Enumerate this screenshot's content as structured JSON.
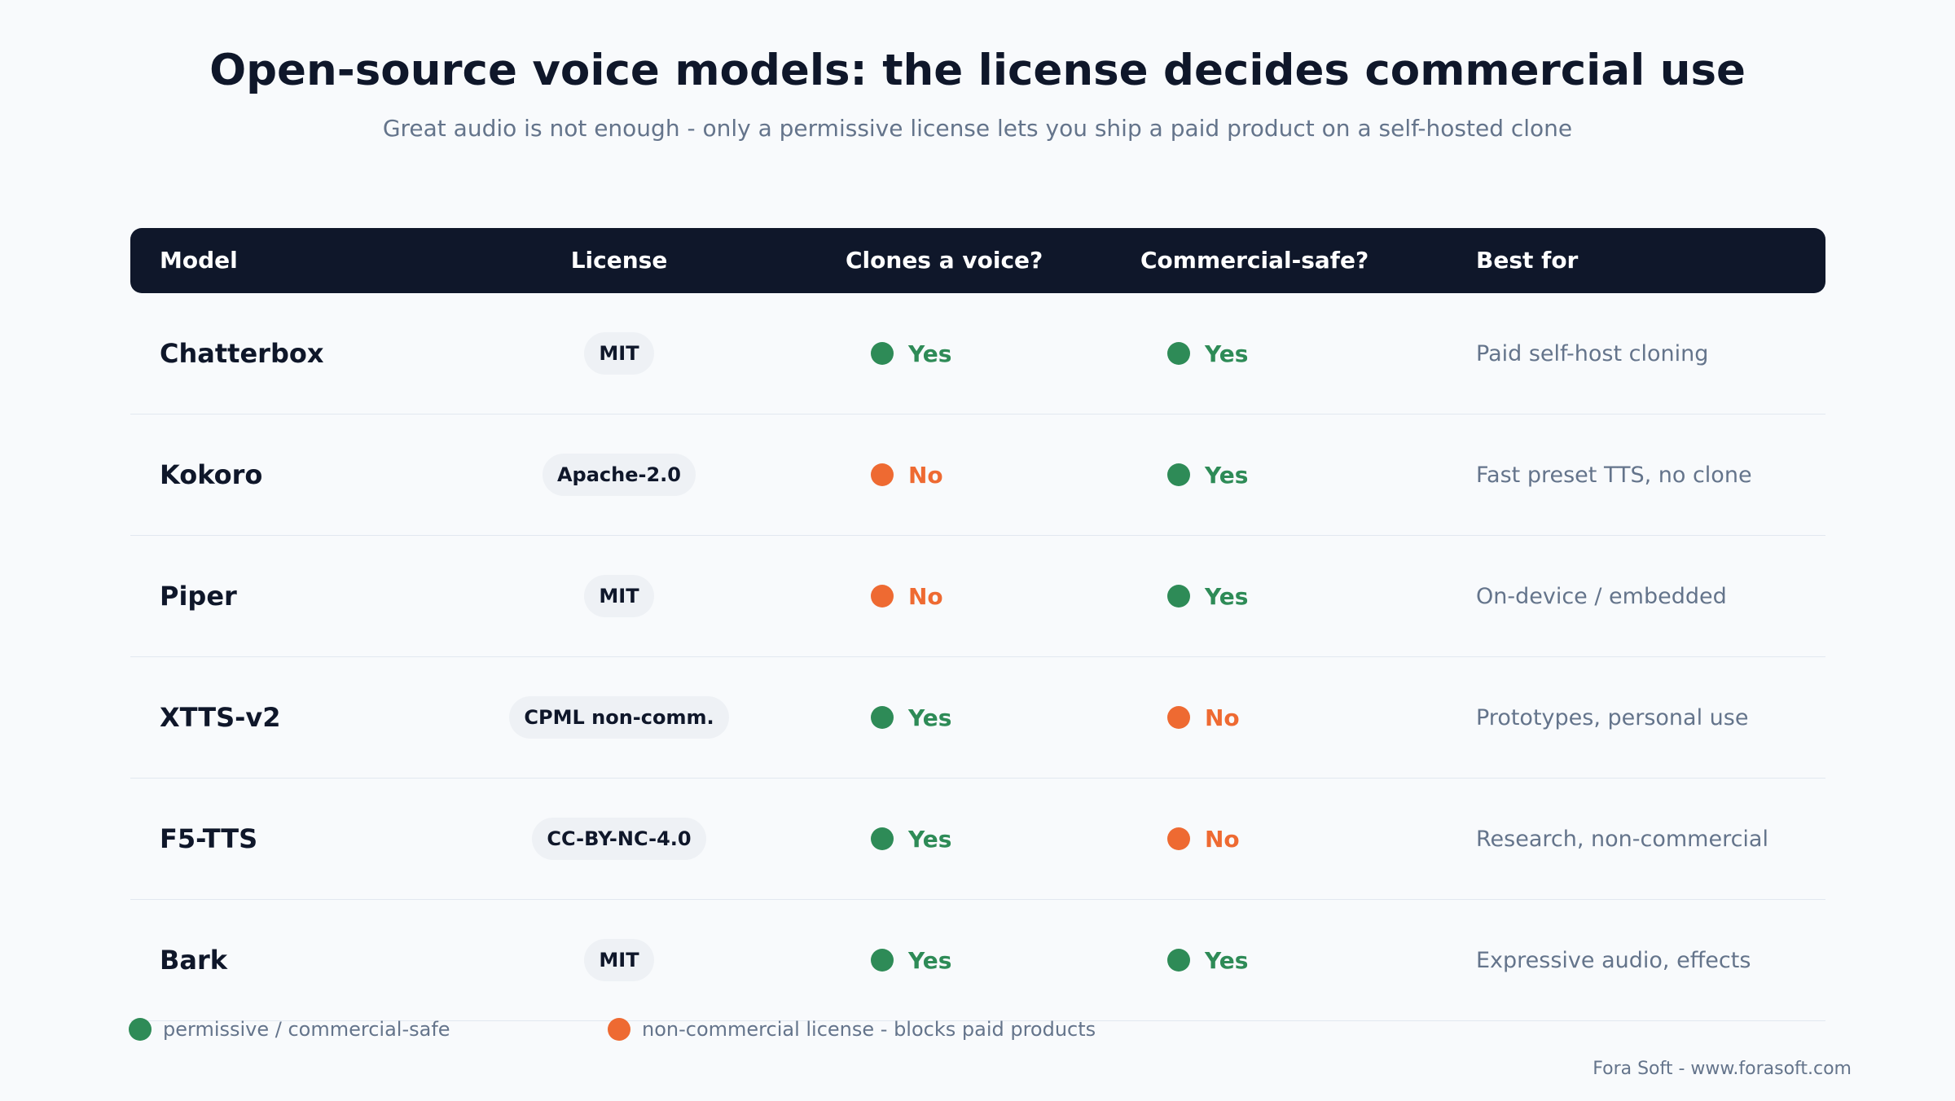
{
  "title": "Open-source voice models: the license decides commercial use",
  "subtitle": "Great audio is not enough - only a permissive license lets you ship a paid product on a self-hosted clone",
  "colors": {
    "yes": "#2e8b57",
    "no": "#ee6a32",
    "header_bg": "#0f172a"
  },
  "table": {
    "headers": {
      "model": "Model",
      "license": "License",
      "clones": "Clones a voice?",
      "commercial": "Commercial-safe?",
      "best_for": "Best for"
    },
    "rows": [
      {
        "model": "Chatterbox",
        "license": "MIT",
        "clones": "Yes",
        "commercial": "Yes",
        "best_for": "Paid self-host cloning"
      },
      {
        "model": "Kokoro",
        "license": "Apache-2.0",
        "clones": "No",
        "commercial": "Yes",
        "best_for": "Fast preset TTS, no clone"
      },
      {
        "model": "Piper",
        "license": "MIT",
        "clones": "No",
        "commercial": "Yes",
        "best_for": "On-device / embedded"
      },
      {
        "model": "XTTS-v2",
        "license": "CPML non-comm.",
        "clones": "Yes",
        "commercial": "No",
        "best_for": "Prototypes, personal use"
      },
      {
        "model": "F5-TTS",
        "license": "CC-BY-NC-4.0",
        "clones": "Yes",
        "commercial": "No",
        "best_for": "Research, non-commercial"
      },
      {
        "model": "Bark",
        "license": "MIT",
        "clones": "Yes",
        "commercial": "Yes",
        "best_for": "Expressive audio, effects"
      }
    ]
  },
  "legend": {
    "permissive": "permissive / commercial-safe",
    "noncommercial": "non-commercial license - blocks paid products"
  },
  "credit": "Fora Soft - www.forasoft.com"
}
